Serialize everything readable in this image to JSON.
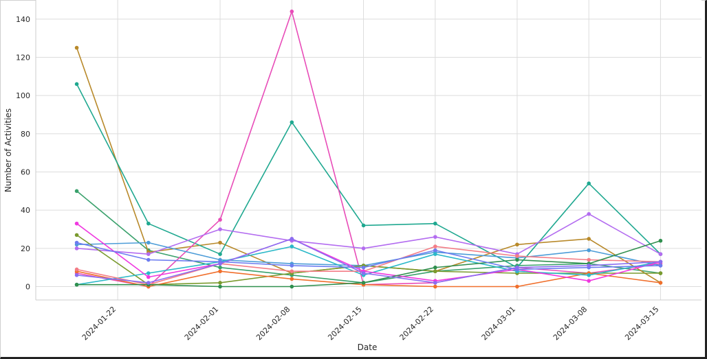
{
  "chart_data": {
    "type": "line",
    "xlabel": "Date",
    "ylabel": "Number of Activities",
    "x_ticks": [
      "2024-01-22",
      "2024-02-01",
      "2024-02-08",
      "2024-02-15",
      "2024-02-22",
      "2024-03-01",
      "2024-03-08",
      "2024-03-15"
    ],
    "y_ticks": [
      0,
      20,
      40,
      60,
      80,
      100,
      120,
      140
    ],
    "ylim": [
      -7,
      150
    ],
    "xlim": [
      "2024-01-14",
      "2024-03-19"
    ],
    "grid": true,
    "legend": "none",
    "x": [
      "2024-01-18",
      "2024-01-25",
      "2024-02-01",
      "2024-02-08",
      "2024-02-15",
      "2024-02-22",
      "2024-03-01",
      "2024-03-08",
      "2024-03-15"
    ],
    "series": [
      {
        "color": "#3aa16c",
        "values": [
          50,
          19,
          10,
          6,
          2,
          8,
          11,
          12,
          7
        ]
      },
      {
        "color": "#b8892a",
        "values": [
          125,
          18,
          23,
          7,
          11,
          8,
          22,
          25,
          2
        ]
      },
      {
        "color": "#1fa890",
        "values": [
          106,
          33,
          17,
          86,
          32,
          33,
          10,
          54,
          17
        ]
      },
      {
        "color": "#e84cb8",
        "values": [
          7,
          0,
          35,
          144,
          1,
          2,
          10,
          7,
          12
        ]
      },
      {
        "color": "#b36cf0",
        "values": [
          20,
          17,
          30,
          24,
          20,
          26,
          17,
          38,
          17
        ]
      },
      {
        "color": "#4c9cd8",
        "values": [
          22,
          23,
          14,
          12,
          11,
          18,
          15,
          19,
          11
        ]
      },
      {
        "color": "#7a9a2e",
        "values": [
          27,
          1,
          2,
          7,
          11,
          8,
          7,
          7,
          7
        ]
      },
      {
        "color": "#f06f2c",
        "values": [
          8,
          0,
          8,
          4,
          1,
          0,
          0,
          7,
          2
        ]
      },
      {
        "color": "#2ab8c8",
        "values": [
          1,
          7,
          13,
          21,
          6,
          17,
          8,
          6,
          13
        ]
      },
      {
        "color": "#f37c86",
        "values": [
          9,
          1,
          12,
          8,
          8,
          21,
          16,
          14,
          13
        ]
      },
      {
        "color": "#f038e0",
        "values": [
          33,
          5,
          12,
          25,
          8,
          3,
          9,
          3,
          13
        ]
      },
      {
        "color": "#2f8f4e",
        "values": [
          1,
          1,
          0,
          0,
          2,
          10,
          14,
          12,
          24
        ]
      },
      {
        "color": "#6c7cf0",
        "values": [
          23,
          14,
          13,
          11,
          10,
          19,
          9,
          10,
          11
        ]
      },
      {
        "color": "#8a6ef0",
        "values": [
          6,
          2,
          12,
          25,
          7,
          2,
          10,
          11,
          13
        ]
      }
    ]
  }
}
